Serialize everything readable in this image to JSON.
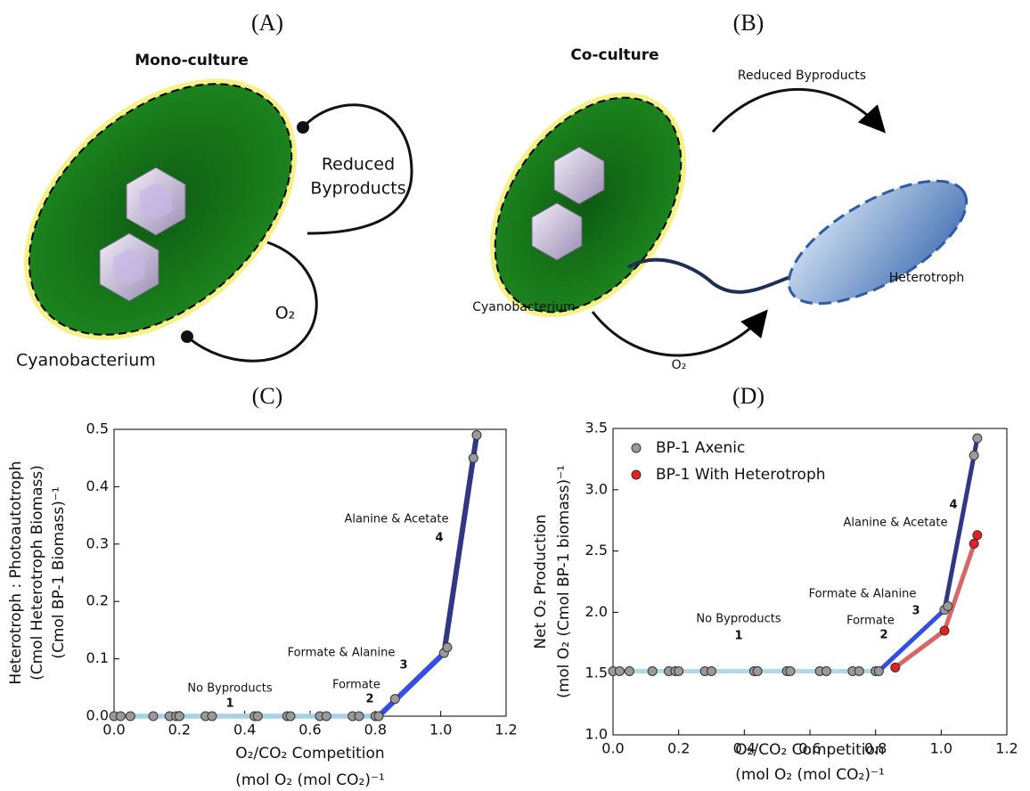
{
  "panels": {
    "A": {
      "label": "(A)",
      "title": "Mono-culture",
      "byproducts": [
        "Reduced",
        "Byproducts"
      ],
      "oxygen": "O₂",
      "organism": "Cyanobacterium"
    },
    "B": {
      "label": "(B)",
      "title": "Co-culture",
      "byproducts": "Reduced Byproducts",
      "partner": "Heterotroph",
      "oxygen": "O₂",
      "organism": "Cyanobacterium"
    }
  },
  "chart_data": [
    {
      "type": "line",
      "title": "(C)",
      "x_label": [
        "O₂/CO₂ Competition",
        "(mol O₂ (mol CO₂)⁻¹"
      ],
      "y_label": [
        "Heterotroph : Photoautotroph",
        "(Cmol Heterotroph Biomass)",
        "(Cmol BP-1 Biomass)⁻¹"
      ],
      "xlim": [
        0,
        1.2
      ],
      "ylim": [
        0,
        0.5
      ],
      "xticks": [
        {
          "value": 0,
          "label": "0.0"
        },
        0.2,
        0.4,
        0.6,
        0.8,
        {
          "value": 1,
          "label": "1.0"
        },
        1.2
      ],
      "yticks": [
        {
          "value": 0,
          "label": "0.0"
        },
        0.1,
        0.2,
        0.3,
        0.4,
        0.5
      ],
      "series": [
        {
          "color": "#a6d6e8",
          "x": [
            0,
            0.81
          ],
          "values": [
            0,
            0
          ]
        },
        {
          "color": "#1c3be0",
          "x": [
            0.81,
            1.01
          ],
          "values": [
            0,
            0.11
          ]
        },
        {
          "color": "#1b2178",
          "x": [
            1.01,
            1.11
          ],
          "values": [
            0.11,
            0.49
          ]
        },
        {
          "color": "#9a9a9a",
          "marker": true,
          "x": [
            0,
            0.02,
            0.05,
            0.12,
            0.17,
            0.19,
            0.2,
            0.28,
            0.3,
            0.43,
            0.44,
            0.53,
            0.54,
            0.63,
            0.65,
            0.73,
            0.75,
            0.8,
            0.81,
            0.86,
            1.01,
            1.02,
            1.1,
            1.11
          ],
          "values": [
            0,
            0,
            0,
            0,
            0,
            0,
            0,
            0,
            0,
            0,
            0,
            0,
            0,
            0,
            0,
            0,
            0,
            0,
            0,
            0.03,
            0.11,
            0.12,
            0.45,
            0.49
          ]
        }
      ],
      "annotations": [
        "No Byproducts",
        "1",
        "Formate",
        "2",
        "Formate & Alanine",
        "3",
        "Alanine & Acetate",
        "4"
      ]
    },
    {
      "type": "line",
      "title": "(D)",
      "x_label": [
        "O₂/CO₂ Competition",
        "(mol O₂ (mol CO₂)⁻¹"
      ],
      "y_label": [
        "Net O₂ Production",
        "(mol O₂ (Cmol BP-1 biomass)⁻¹"
      ],
      "xlim": [
        0,
        1.2
      ],
      "ylim": [
        1,
        3.5
      ],
      "xticks": [
        {
          "value": 0,
          "label": "0.0"
        },
        0.2,
        0.4,
        0.6,
        0.8,
        {
          "value": 1,
          "label": "1.0"
        },
        1.2
      ],
      "yticks": [
        {
          "value": 1,
          "label": "1.0"
        },
        1.5,
        {
          "value": 2,
          "label": "2.0"
        },
        2.5,
        {
          "value": 3,
          "label": "3.0"
        },
        3.5
      ],
      "legend": "upper left",
      "series": [
        {
          "color": "#a6d6e8",
          "x": [
            0,
            0.81
          ],
          "values": [
            1.52,
            1.52
          ]
        },
        {
          "color": "#1c3be0",
          "x": [
            0.81,
            1.01
          ],
          "values": [
            1.52,
            2.02
          ]
        },
        {
          "color": "#1b2178",
          "x": [
            1.01,
            1.11
          ],
          "values": [
            2.02,
            3.42
          ]
        },
        {
          "color": "#d45555",
          "x": [
            0.86,
            1.01,
            1.11
          ],
          "values": [
            1.55,
            1.85,
            2.63
          ]
        },
        {
          "name": "BP-1 Axenic",
          "color": "#9a9a9a",
          "marker": true,
          "x": [
            0,
            0.02,
            0.05,
            0.12,
            0.17,
            0.19,
            0.2,
            0.28,
            0.3,
            0.43,
            0.44,
            0.53,
            0.54,
            0.63,
            0.65,
            0.73,
            0.75,
            0.8,
            0.81,
            1.01,
            1.02,
            1.1,
            1.11
          ],
          "values": [
            1.52,
            1.52,
            1.52,
            1.52,
            1.52,
            1.52,
            1.52,
            1.52,
            1.52,
            1.52,
            1.52,
            1.52,
            1.52,
            1.52,
            1.52,
            1.52,
            1.52,
            1.52,
            1.52,
            2.02,
            2.05,
            3.28,
            3.42
          ]
        },
        {
          "name": "BP-1 With Heterotroph",
          "color": "#e8201c",
          "marker": true,
          "x": [
            0.86,
            1.01,
            1.1,
            1.11
          ],
          "values": [
            1.55,
            1.85,
            2.56,
            2.63
          ]
        }
      ],
      "annotations": [
        "No Byproducts",
        "1",
        "Formate",
        "2",
        "Formate & Alanine",
        "3",
        "Alanine & Acetate",
        "4"
      ]
    }
  ]
}
